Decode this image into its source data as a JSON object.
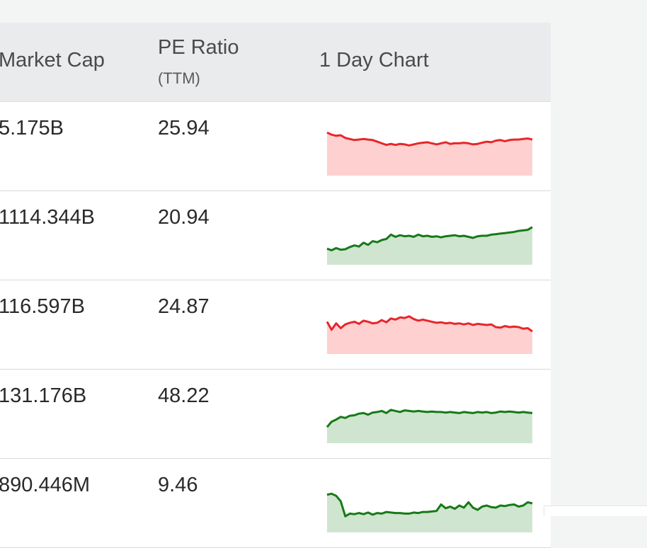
{
  "header": {
    "market_cap": "Market Cap",
    "pe_ratio": "PE Ratio",
    "pe_ratio_sub": "(TTM)",
    "chart": "1 Day Chart"
  },
  "colors": {
    "down_line": "#e8262a",
    "down_fill": "#ffd0d0",
    "up_line": "#167a17",
    "up_fill": "#cfe5cf"
  },
  "rows": [
    {
      "market_cap": "5.175B",
      "pe_ratio": "25.94",
      "trend": "down",
      "chart_data": {
        "type": "area",
        "values": [
          80,
          76,
          74,
          75,
          70,
          68,
          66,
          67,
          68,
          67,
          66,
          63,
          60,
          57,
          59,
          57,
          59,
          58,
          56,
          58,
          60,
          61,
          62,
          60,
          58,
          60,
          62,
          59,
          60,
          60,
          61,
          60,
          58,
          59,
          61,
          63,
          62,
          65,
          66,
          64,
          66,
          67,
          67,
          68,
          69,
          67
        ]
      }
    },
    {
      "market_cap": "1114.344B",
      "pe_ratio": "20.94",
      "trend": "up",
      "chart_data": {
        "type": "area",
        "values": [
          30,
          27,
          31,
          28,
          29,
          33,
          36,
          34,
          41,
          37,
          44,
          42,
          46,
          48,
          56,
          52,
          55,
          53,
          54,
          52,
          56,
          53,
          54,
          52,
          53,
          51,
          53,
          54,
          55,
          53,
          54,
          52,
          50,
          53,
          54,
          54,
          56,
          57,
          58,
          59,
          60,
          61,
          63,
          64,
          65,
          70
        ]
      }
    },
    {
      "market_cap": "116.597B",
      "pe_ratio": "24.87",
      "trend": "down",
      "chart_data": {
        "type": "area",
        "values": [
          60,
          45,
          57,
          48,
          55,
          58,
          60,
          56,
          62,
          60,
          57,
          58,
          63,
          59,
          66,
          64,
          68,
          67,
          70,
          65,
          62,
          64,
          62,
          60,
          58,
          59,
          57,
          58,
          56,
          57,
          55,
          57,
          54,
          56,
          55,
          54,
          55,
          50,
          49,
          52,
          50,
          51,
          50,
          47,
          48,
          42
        ]
      }
    },
    {
      "market_cap": "131.176B",
      "pe_ratio": "48.22",
      "trend": "up",
      "chart_data": {
        "type": "area",
        "values": [
          30,
          40,
          44,
          49,
          47,
          51,
          52,
          55,
          56,
          53,
          57,
          58,
          60,
          56,
          62,
          60,
          58,
          61,
          60,
          59,
          60,
          59,
          58,
          59,
          58,
          58,
          57,
          58,
          57,
          56,
          58,
          57,
          56,
          58,
          57,
          58,
          56,
          57,
          59,
          58,
          59,
          58,
          57,
          58,
          57,
          56
        ]
      }
    },
    {
      "market_cap": "890.446M",
      "pe_ratio": "9.46",
      "trend": "up",
      "chart_data": {
        "type": "area",
        "values": [
          70,
          72,
          68,
          58,
          30,
          35,
          34,
          36,
          34,
          37,
          33,
          36,
          35,
          38,
          37,
          36,
          36,
          35,
          35,
          37,
          36,
          38,
          38,
          39,
          40,
          52,
          45,
          48,
          44,
          50,
          46,
          56,
          46,
          42,
          48,
          50,
          47,
          46,
          50,
          49,
          51,
          52,
          48,
          50,
          56,
          54
        ]
      }
    }
  ]
}
